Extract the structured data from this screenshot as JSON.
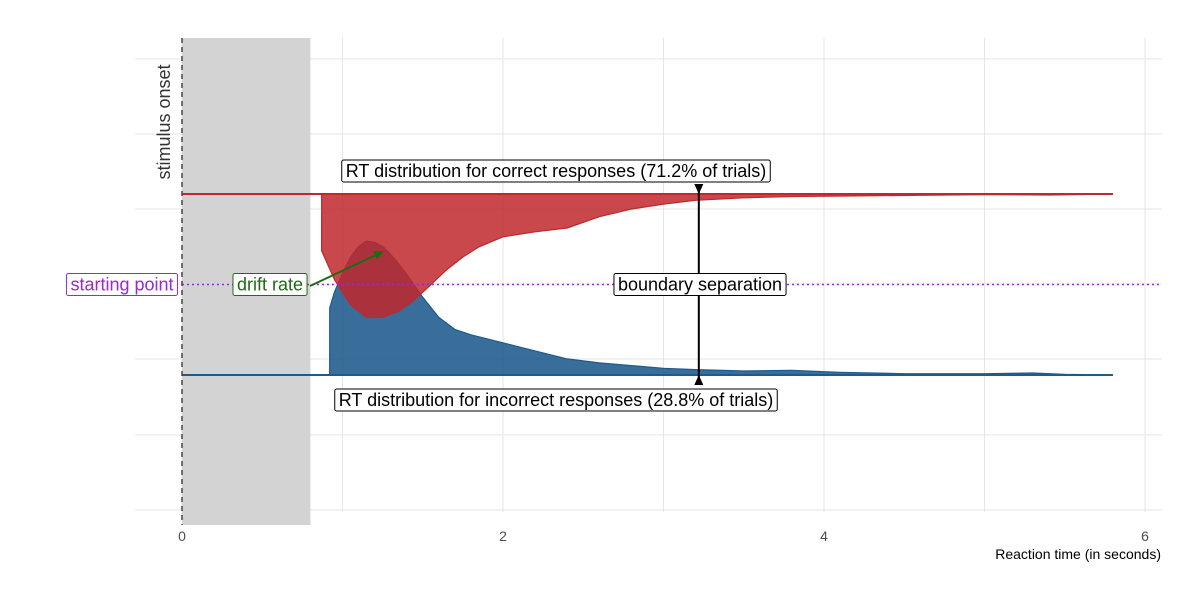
{
  "chart_data": {
    "type": "area",
    "xlabel": "Reaction time (in seconds)",
    "xlim": [
      0,
      6
    ],
    "x_ticks": [
      0,
      2,
      4,
      6
    ],
    "grid": true,
    "non_decision_time": 0.8,
    "upper_boundary": 1.0,
    "lower_boundary": 0.0,
    "starting_point": 0.5,
    "colors": {
      "correct": "#1f5a8c",
      "incorrect": "#c0282d",
      "starting_point": "#9a27d6",
      "drift": "#1d6b12",
      "shade": "#d3d3d3"
    },
    "annotations": {
      "stimulus_onset": "stimulus onset",
      "starting_point": "starting point",
      "drift_rate": "drift rate",
      "boundary_separation": "boundary separation",
      "correct_label": "RT distribution for correct responses (71.2% of trials)",
      "incorrect_label": "RT distribution for incorrect responses (28.8% of trials)"
    },
    "series": [
      {
        "name": "RT distribution for correct responses (71.2% of trials)",
        "x": [
          0.92,
          0.95,
          1.0,
          1.05,
          1.1,
          1.15,
          1.2,
          1.25,
          1.3,
          1.35,
          1.4,
          1.5,
          1.6,
          1.7,
          1.8,
          1.9,
          2.0,
          2.2,
          2.4,
          2.6,
          2.8,
          3.0,
          3.2,
          3.5,
          3.8,
          4.1,
          4.5,
          5.0,
          5.3,
          5.5,
          5.8
        ],
        "y": [
          0.5,
          0.62,
          0.76,
          0.88,
          0.96,
          1.0,
          0.99,
          0.96,
          0.9,
          0.83,
          0.75,
          0.58,
          0.43,
          0.34,
          0.3,
          0.27,
          0.24,
          0.18,
          0.12,
          0.09,
          0.07,
          0.05,
          0.04,
          0.03,
          0.035,
          0.02,
          0.01,
          0.01,
          0.015,
          0.005,
          0.0
        ]
      },
      {
        "name": "RT distribution for incorrect responses (28.8% of trials)",
        "x": [
          0.87,
          0.95,
          1.05,
          1.15,
          1.25,
          1.35,
          1.45,
          1.55,
          1.65,
          1.75,
          1.85,
          2.0,
          2.2,
          2.4,
          2.6,
          2.8,
          3.0,
          3.2,
          3.5,
          3.8,
          4.2,
          4.6,
          5.0,
          5.4,
          5.8
        ],
        "y": [
          0.45,
          0.68,
          0.88,
          0.98,
          0.98,
          0.93,
          0.84,
          0.72,
          0.6,
          0.5,
          0.42,
          0.34,
          0.3,
          0.27,
          0.18,
          0.12,
          0.08,
          0.05,
          0.03,
          0.02,
          0.015,
          0.01,
          0.005,
          0.008,
          0.0
        ]
      }
    ]
  }
}
